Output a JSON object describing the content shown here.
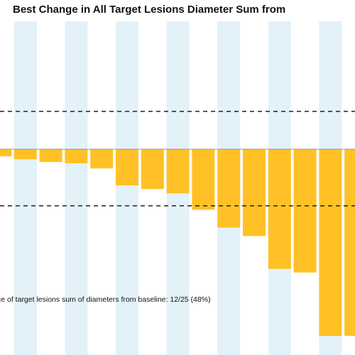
{
  "chart_data": {
    "type": "bar",
    "title": "Best Change in All Target Lesions Diameter Sum from",
    "annotation": "ce of target lesions sum of diameters from baseline: 12/25 (48%)",
    "categories": [
      null,
      null,
      null,
      null,
      null,
      null,
      null,
      null,
      null,
      null,
      null,
      null,
      null,
      null,
      null
    ],
    "values": [
      -3.8,
      -5.3,
      -6.8,
      -7.5,
      -10.2,
      -19.2,
      -21.1,
      -23.4,
      -32.1,
      -41.5,
      -46,
      -63.4,
      -65.3,
      -98.9,
      -98.9
    ],
    "color": "#ffc125",
    "stripe_color": "#e3f1f9",
    "ylim": [
      -109,
      79
    ],
    "reference_lines": [
      20,
      -30
    ]
  }
}
